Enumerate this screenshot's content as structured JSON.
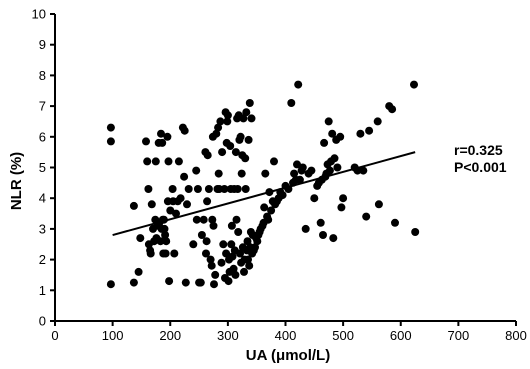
{
  "chart_data": {
    "type": "scatter",
    "title": "",
    "xlabel": "UA (μmol/L)",
    "ylabel": "NLR (%)",
    "xlim": [
      0,
      800
    ],
    "ylim": [
      0,
      10
    ],
    "x_ticks": [
      0,
      100,
      200,
      300,
      400,
      500,
      600,
      700,
      800
    ],
    "y_ticks": [
      0,
      1,
      2,
      3,
      4,
      5,
      6,
      7,
      8,
      9,
      10
    ],
    "grid": false,
    "legend": "none",
    "point_color": "#000000",
    "line_color": "#000000",
    "annotation": [
      "r=0.325",
      "P<0.001"
    ],
    "regression_line": {
      "x": [
        100,
        625
      ],
      "y": [
        2.8,
        5.5
      ]
    },
    "points": [
      [
        97,
        6.3
      ],
      [
        97,
        5.85
      ],
      [
        97,
        1.2
      ],
      [
        137,
        1.25
      ],
      [
        137,
        3.75
      ],
      [
        145,
        1.6
      ],
      [
        148,
        2.7
      ],
      [
        158,
        5.85
      ],
      [
        160,
        5.2
      ],
      [
        162,
        4.3
      ],
      [
        163,
        2.5
      ],
      [
        165,
        2.3
      ],
      [
        166,
        2.2
      ],
      [
        168,
        3.8
      ],
      [
        170,
        3.0
      ],
      [
        172,
        2.6
      ],
      [
        174,
        3.3
      ],
      [
        175,
        5.2
      ],
      [
        176,
        2.7
      ],
      [
        178,
        3.1
      ],
      [
        180,
        5.8
      ],
      [
        181,
        3.2
      ],
      [
        183,
        2.6
      ],
      [
        184,
        6.1
      ],
      [
        185,
        3.0
      ],
      [
        186,
        5.8
      ],
      [
        187,
        3.3
      ],
      [
        188,
        2.2
      ],
      [
        189,
        3.3
      ],
      [
        190,
        3.0
      ],
      [
        191,
        2.8
      ],
      [
        192,
        2.2
      ],
      [
        193,
        2.6
      ],
      [
        195,
        6.0
      ],
      [
        196,
        3.9
      ],
      [
        197,
        5.2
      ],
      [
        198,
        1.3
      ],
      [
        200,
        3.6
      ],
      [
        204,
        4.3
      ],
      [
        205,
        3.9
      ],
      [
        207,
        2.2
      ],
      [
        210,
        3.5
      ],
      [
        213,
        3.9
      ],
      [
        215,
        5.2
      ],
      [
        218,
        4.0
      ],
      [
        222,
        6.3
      ],
      [
        224,
        4.7
      ],
      [
        225,
        6.2
      ],
      [
        227,
        1.25
      ],
      [
        229,
        3.8
      ],
      [
        232,
        4.3
      ],
      [
        240,
        2.5
      ],
      [
        245,
        4.9
      ],
      [
        246,
        3.3
      ],
      [
        248,
        4.3
      ],
      [
        250,
        1.25
      ],
      [
        253,
        1.25
      ],
      [
        255,
        2.8
      ],
      [
        258,
        3.3
      ],
      [
        261,
        5.5
      ],
      [
        262,
        2.2
      ],
      [
        263,
        2.6
      ],
      [
        264,
        3.9
      ],
      [
        265,
        5.4
      ],
      [
        267,
        4.3
      ],
      [
        270,
        2.0
      ],
      [
        272,
        1.8
      ],
      [
        273,
        3.3
      ],
      [
        274,
        6.0
      ],
      [
        275,
        3.1
      ],
      [
        276,
        1.2
      ],
      [
        278,
        1.5
      ],
      [
        280,
        6.1
      ],
      [
        282,
        4.3
      ],
      [
        283,
        6.3
      ],
      [
        284,
        4.8
      ],
      [
        285,
        4.3
      ],
      [
        287,
        6.5
      ],
      [
        289,
        1.9
      ],
      [
        290,
        5.5
      ],
      [
        292,
        2.5
      ],
      [
        294,
        4.3
      ],
      [
        295,
        1.4
      ],
      [
        296,
        6.8
      ],
      [
        297,
        2.2
      ],
      [
        298,
        5.8
      ],
      [
        299,
        6.5
      ],
      [
        300,
        6.7
      ],
      [
        301,
        1.3
      ],
      [
        302,
        2.0
      ],
      [
        303,
        1.6
      ],
      [
        304,
        5.7
      ],
      [
        305,
        4.3
      ],
      [
        306,
        2.5
      ],
      [
        307,
        3.1
      ],
      [
        308,
        2.1
      ],
      [
        310,
        1.7
      ],
      [
        311,
        4.3
      ],
      [
        312,
        2.3
      ],
      [
        313,
        1.5
      ],
      [
        314,
        5.5
      ],
      [
        315,
        3.3
      ],
      [
        316,
        6.6
      ],
      [
        317,
        4.3
      ],
      [
        318,
        2.9
      ],
      [
        319,
        6.7
      ],
      [
        320,
        5.9
      ],
      [
        321,
        2.2
      ],
      [
        322,
        6.0
      ],
      [
        323,
        1.9
      ],
      [
        324,
        4.8
      ],
      [
        325,
        5.4
      ],
      [
        326,
        2.4
      ],
      [
        327,
        6.6
      ],
      [
        328,
        1.6
      ],
      [
        329,
        2.0
      ],
      [
        330,
        5.3
      ],
      [
        331,
        4.3
      ],
      [
        332,
        6.8
      ],
      [
        333,
        2.3
      ],
      [
        334,
        2.6
      ],
      [
        335,
        2.0
      ],
      [
        336,
        5.9
      ],
      [
        337,
        1.8
      ],
      [
        338,
        7.1
      ],
      [
        339,
        2.4
      ],
      [
        340,
        2.9
      ],
      [
        341,
        6.6
      ],
      [
        342,
        2.2
      ],
      [
        343,
        2.8
      ],
      [
        345,
        2.3
      ],
      [
        347,
        2.4
      ],
      [
        349,
        2.7
      ],
      [
        351,
        2.6
      ],
      [
        353,
        2.8
      ],
      [
        355,
        2.9
      ],
      [
        357,
        3.0
      ],
      [
        360,
        3.1
      ],
      [
        362,
        3.2
      ],
      [
        363,
        3.7
      ],
      [
        365,
        4.8
      ],
      [
        368,
        3.4
      ],
      [
        370,
        3.3
      ],
      [
        372,
        4.2
      ],
      [
        375,
        3.6
      ],
      [
        378,
        3.9
      ],
      [
        380,
        5.2
      ],
      [
        382,
        3.8
      ],
      [
        385,
        3.9
      ],
      [
        388,
        4.0
      ],
      [
        391,
        4.2
      ],
      [
        395,
        4.1
      ],
      [
        400,
        4.4
      ],
      [
        405,
        4.3
      ],
      [
        410,
        7.1
      ],
      [
        413,
        4.5
      ],
      [
        415,
        4.8
      ],
      [
        418,
        4.6
      ],
      [
        420,
        5.1
      ],
      [
        422,
        7.7
      ],
      [
        425,
        4.6
      ],
      [
        428,
        4.9
      ],
      [
        430,
        5.0
      ],
      [
        435,
        3.0
      ],
      [
        440,
        4.8
      ],
      [
        445,
        4.9
      ],
      [
        450,
        4.0
      ],
      [
        455,
        4.4
      ],
      [
        458,
        4.5
      ],
      [
        461,
        3.2
      ],
      [
        463,
        4.6
      ],
      [
        465,
        2.8
      ],
      [
        467,
        5.8
      ],
      [
        469,
        4.7
      ],
      [
        471,
        4.8
      ],
      [
        473,
        5.1
      ],
      [
        475,
        6.5
      ],
      [
        477,
        4.9
      ],
      [
        479,
        5.2
      ],
      [
        481,
        6.1
      ],
      [
        483,
        2.7
      ],
      [
        485,
        5.3
      ],
      [
        488,
        5.9
      ],
      [
        490,
        5.0
      ],
      [
        495,
        6.0
      ],
      [
        497,
        3.7
      ],
      [
        500,
        4.0
      ],
      [
        520,
        5.0
      ],
      [
        525,
        4.9
      ],
      [
        530,
        6.1
      ],
      [
        535,
        4.9
      ],
      [
        540,
        3.4
      ],
      [
        545,
        6.2
      ],
      [
        560,
        6.5
      ],
      [
        562,
        3.8
      ],
      [
        580,
        7.0
      ],
      [
        585,
        6.9
      ],
      [
        590,
        3.2
      ],
      [
        623,
        7.7
      ],
      [
        625,
        2.9
      ]
    ]
  }
}
